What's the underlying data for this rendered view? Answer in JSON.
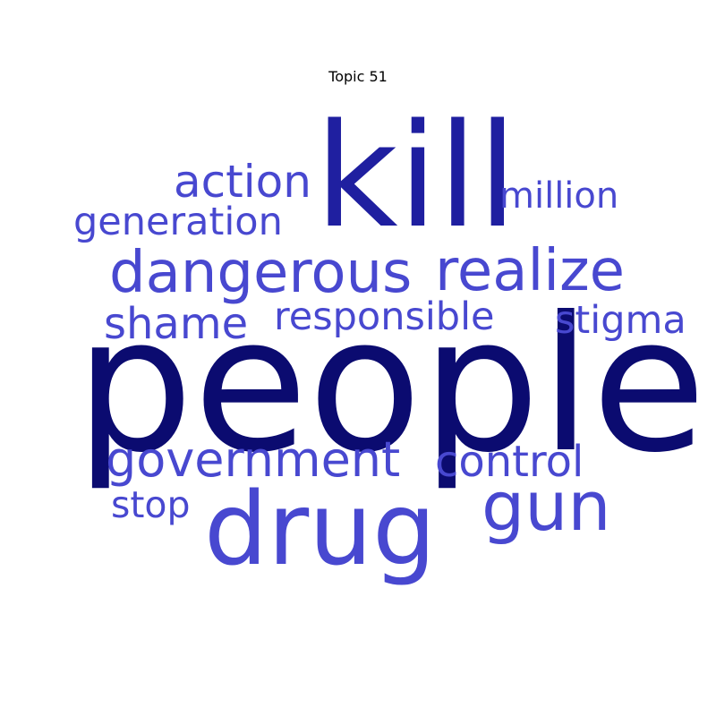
{
  "title": "Topic 51",
  "colors": {
    "dark": "#0b0b70",
    "mid": "#1f1fa0",
    "light": "#4848d0"
  },
  "words": [
    {
      "id": "people",
      "text": "people",
      "tone": "dark"
    },
    {
      "id": "kill",
      "text": "kill",
      "tone": "mid"
    },
    {
      "id": "drug",
      "text": "drug",
      "tone": "light"
    },
    {
      "id": "gun",
      "text": "gun",
      "tone": "light"
    },
    {
      "id": "realize",
      "text": "realize",
      "tone": "light"
    },
    {
      "id": "dangerous",
      "text": "dangerous",
      "tone": "light"
    },
    {
      "id": "government",
      "text": "government",
      "tone": "light"
    },
    {
      "id": "action",
      "text": "action",
      "tone": "light"
    },
    {
      "id": "control",
      "text": "control",
      "tone": "light"
    },
    {
      "id": "shame",
      "text": "shame",
      "tone": "light"
    },
    {
      "id": "responsible",
      "text": "responsible",
      "tone": "light"
    },
    {
      "id": "stigma",
      "text": "stigma",
      "tone": "light"
    },
    {
      "id": "generation",
      "text": "generation",
      "tone": "light"
    },
    {
      "id": "million",
      "text": "million",
      "tone": "light"
    },
    {
      "id": "stop",
      "text": "stop",
      "tone": "light"
    }
  ]
}
